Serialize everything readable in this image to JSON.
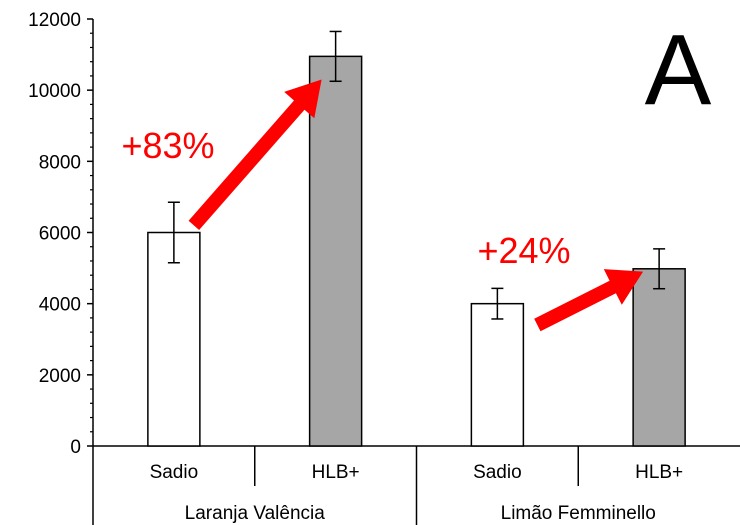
{
  "chart_data": {
    "type": "bar",
    "panel_label": "A",
    "ylim": [
      0,
      12000
    ],
    "yticks": [
      0,
      2000,
      4000,
      6000,
      8000,
      10000,
      12000
    ],
    "groups": [
      {
        "label": "Laranja Valência",
        "bars": [
          {
            "category": "Sadio",
            "value": 6000,
            "error": 850,
            "color": "#ffffff"
          },
          {
            "category": "HLB+",
            "value": 10950,
            "error": 700,
            "color": "#a6a6a6"
          }
        ],
        "annotation": "+83%"
      },
      {
        "label": "Limão Femminello",
        "bars": [
          {
            "category": "Sadio",
            "value": 4000,
            "error": 430,
            "color": "#ffffff"
          },
          {
            "category": "HLB+",
            "value": 4980,
            "error": 560,
            "color": "#a6a6a6"
          }
        ],
        "annotation": "+24%"
      }
    ],
    "arrow_color": "#ff0000",
    "grid": false
  }
}
